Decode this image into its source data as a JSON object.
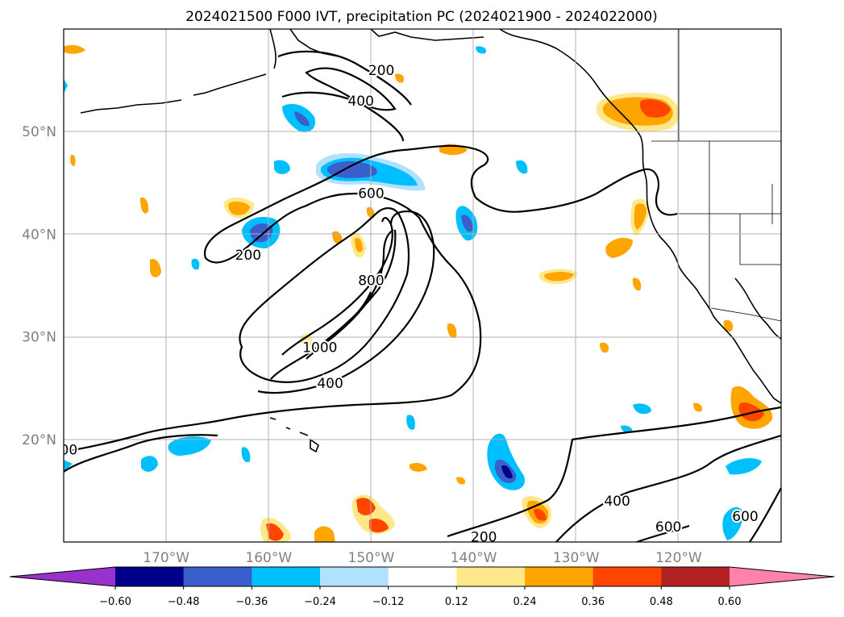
{
  "chart_data": {
    "type": "heatmap",
    "title": "2024021500 F000 IVT, precipitation PC (2024021900 - 2024022000)",
    "xlabel": "",
    "ylabel": "",
    "map_extent": {
      "lon": [
        -180,
        -110
      ],
      "lat": [
        10,
        60
      ]
    },
    "grid": true,
    "x_ticks": [
      {
        "lon": -170,
        "label": "170°W"
      },
      {
        "lon": -160,
        "label": "160°W"
      },
      {
        "lon": -150,
        "label": "150°W"
      },
      {
        "lon": -140,
        "label": "140°W"
      },
      {
        "lon": -130,
        "label": "130°W"
      },
      {
        "lon": -120,
        "label": "120°W"
      }
    ],
    "y_ticks": [
      {
        "lat": 20,
        "label": "20°N"
      },
      {
        "lat": 30,
        "label": "30°N"
      },
      {
        "lat": 40,
        "label": "40°N"
      },
      {
        "lat": 50,
        "label": "50°N"
      }
    ],
    "colorbar": {
      "levels": [
        -0.6,
        -0.48,
        -0.36,
        -0.24,
        -0.12,
        0.12,
        0.24,
        0.36,
        0.48,
        0.6
      ],
      "tick_labels": [
        "−0.60",
        "−0.48",
        "−0.36",
        "−0.24",
        "−0.12",
        "0.12",
        "0.24",
        "0.36",
        "0.48",
        "0.60"
      ],
      "colors": [
        "#9932cc",
        "#00008b",
        "#3a5fcd",
        "#00bfff",
        "#b0e2ff",
        "#ffffff",
        "#ffe88a",
        "#ffa500",
        "#ff4500",
        "#b22222",
        "#ff82ab"
      ],
      "extend": "both"
    },
    "ivt_contour_levels": [
      200,
      400,
      600,
      800,
      1000
    ],
    "contour_labels": [
      {
        "text": "200",
        "lon": -149,
        "lat": 56
      },
      {
        "text": "400",
        "lon": -151,
        "lat": 53
      },
      {
        "text": "600",
        "lon": -150,
        "lat": 44
      },
      {
        "text": "200",
        "lon": -162,
        "lat": 38
      },
      {
        "text": "800",
        "lon": -150,
        "lat": 35.5
      },
      {
        "text": "1000",
        "lon": -155,
        "lat": 29
      },
      {
        "text": "400",
        "lon": -154,
        "lat": 25.5
      },
      {
        "text": "00",
        "lon": -179.5,
        "lat": 19
      },
      {
        "text": "400",
        "lon": -126,
        "lat": 14
      },
      {
        "text": "600",
        "lon": -121,
        "lat": 11.5
      },
      {
        "text": "600",
        "lon": -113.5,
        "lat": 12.5
      },
      {
        "text": "200",
        "lon": -139,
        "lat": 10.5
      }
    ],
    "precip_pc_anomalies": [
      {
        "lon": -176.8,
        "lat": 55.0,
        "value": 0.3
      },
      {
        "lon": -169.5,
        "lat": 44.5,
        "value": 0.28
      },
      {
        "lon": -160.0,
        "lat": 51.0,
        "value": -0.4
      },
      {
        "lon": -153.5,
        "lat": 46.0,
        "value": -0.45
      },
      {
        "lon": -147.0,
        "lat": 45.8,
        "value": -0.3
      },
      {
        "lon": -157.0,
        "lat": 47.0,
        "value": -0.28
      },
      {
        "lon": -140.0,
        "lat": 48.5,
        "value": 0.3
      },
      {
        "lon": -163.0,
        "lat": 42.8,
        "value": 0.32
      },
      {
        "lon": -160.5,
        "lat": 40.0,
        "value": -0.42
      },
      {
        "lon": -141.5,
        "lat": 41.0,
        "value": -0.42
      },
      {
        "lon": -147.5,
        "lat": 42.5,
        "value": 0.25
      },
      {
        "lon": -152.8,
        "lat": 39.0,
        "value": 0.32
      },
      {
        "lon": -168.8,
        "lat": 37.0,
        "value": 0.3
      },
      {
        "lon": -132.0,
        "lat": 36.0,
        "value": 0.35
      },
      {
        "lon": -126.0,
        "lat": 38.8,
        "value": 0.38
      },
      {
        "lon": -124.0,
        "lat": 42.0,
        "value": 0.3
      },
      {
        "lon": -122.0,
        "lat": 52.0,
        "value": 0.4
      },
      {
        "lon": -127.5,
        "lat": 51.8,
        "value": 0.3
      },
      {
        "lon": -115.5,
        "lat": 22.8,
        "value": 0.4
      },
      {
        "lon": -170.0,
        "lat": 18.0,
        "value": -0.3
      },
      {
        "lon": -172.5,
        "lat": 17.0,
        "value": -0.32
      },
      {
        "lon": -137.0,
        "lat": 16.5,
        "value": -0.48
      },
      {
        "lon": -146.5,
        "lat": 21.0,
        "value": -0.3
      },
      {
        "lon": -149.5,
        "lat": 12.0,
        "value": 0.38
      },
      {
        "lon": -134.0,
        "lat": 12.5,
        "value": 0.38
      },
      {
        "lon": -159.0,
        "lat": 11.0,
        "value": 0.4
      },
      {
        "lon": -113.5,
        "lat": 11.5,
        "value": -0.35
      },
      {
        "lon": -114.0,
        "lat": 17.0,
        "value": -0.3
      },
      {
        "lon": -121.0,
        "lat": 23.0,
        "value": -0.28
      },
      {
        "lon": -143.0,
        "lat": 29.5,
        "value": 0.3
      },
      {
        "lon": -159.0,
        "lat": 19.0,
        "value": -0.25
      }
    ]
  }
}
